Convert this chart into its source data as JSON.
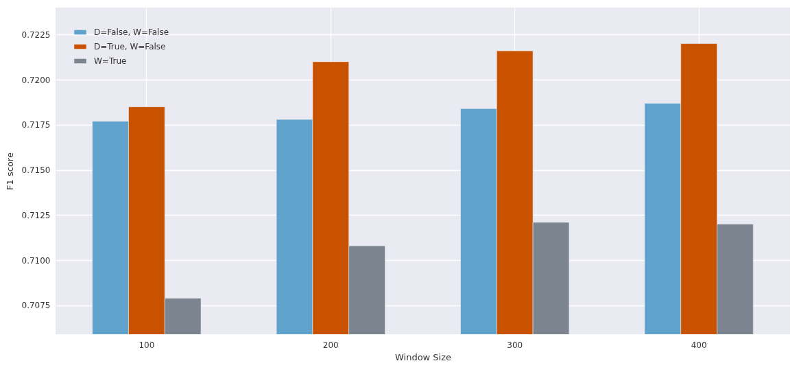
{
  "chart_data": {
    "type": "bar",
    "xlabel": "Window Size",
    "ylabel": "F1 score",
    "categories": [
      "100",
      "200",
      "300",
      "400"
    ],
    "series": [
      {
        "name": "D=False, W=False",
        "color": "#5fa2cc",
        "values": [
          0.7177,
          0.7178,
          0.7184,
          0.7187
        ]
      },
      {
        "name": "D=True, W=False",
        "color": "#c85200",
        "values": [
          0.7185,
          0.721,
          0.7216,
          0.722
        ]
      },
      {
        "name": "W=True",
        "color": "#7b848f",
        "values": [
          0.7079,
          0.7108,
          0.7121,
          0.712
        ]
      }
    ],
    "ylim": [
      0.7059,
      0.724
    ],
    "yticks": [
      0.7075,
      {
        "value": 0.71,
        "label": "0.7100"
      },
      0.7125,
      {
        "value": 0.715,
        "label": "0.7150"
      },
      0.7175,
      {
        "value": 0.72,
        "label": "0.7200"
      },
      0.7225
    ],
    "grid": true,
    "legend": "top left"
  }
}
